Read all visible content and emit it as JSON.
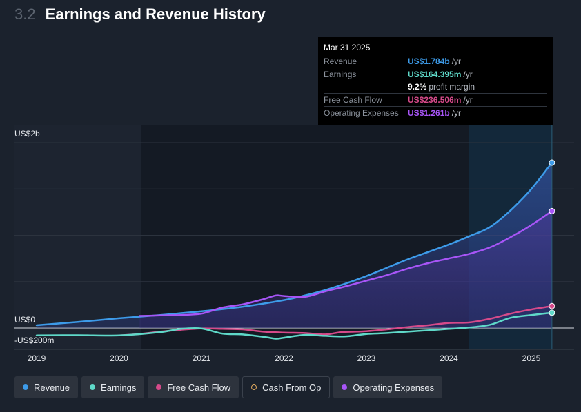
{
  "header": {
    "section_number": "3.2",
    "title": "Earnings and Revenue History"
  },
  "tooltip": {
    "date": "Mar 31 2025",
    "rows": [
      {
        "label": "Revenue",
        "value": "US$1.784b",
        "unit": "/yr"
      },
      {
        "label": "Earnings",
        "value": "US$164.395m",
        "unit": "/yr"
      },
      {
        "label": "",
        "value": "9.2%",
        "unit": "profit margin"
      },
      {
        "label": "Free Cash Flow",
        "value": "US$236.506m",
        "unit": "/yr"
      },
      {
        "label": "Operating Expenses",
        "value": "US$1.261b",
        "unit": "/yr"
      }
    ]
  },
  "legend": [
    {
      "label": "Revenue",
      "color": "#3d9be9",
      "style": "filled"
    },
    {
      "label": "Earnings",
      "color": "#5fd9c9",
      "style": "filled"
    },
    {
      "label": "Free Cash Flow",
      "color": "#d64a8a",
      "style": "filled"
    },
    {
      "label": "Cash From Op",
      "color": "#e0a95e",
      "style": "outlined"
    },
    {
      "label": "Operating Expenses",
      "color": "#a855f7",
      "style": "filled"
    }
  ],
  "chart_data": {
    "type": "line",
    "title": "Earnings and Revenue History",
    "unit": "US$m",
    "x_ticks": [
      "2019",
      "2020",
      "2021",
      "2022",
      "2023",
      "2024",
      "2025"
    ],
    "y_tick_labels": [
      {
        "label": "US$2b",
        "value": 2000
      },
      {
        "label": "US$0",
        "value": 0
      },
      {
        "label": "-US$200m",
        "value": -200
      }
    ],
    "ylim": [
      -200,
      2000
    ],
    "highlight_date": 2025.25,
    "series": [
      {
        "name": "Revenue",
        "color": "#3d9be9",
        "fill": true,
        "points": [
          [
            2019.0,
            30
          ],
          [
            2019.5,
            65
          ],
          [
            2020.0,
            105
          ],
          [
            2020.5,
            140
          ],
          [
            2021.0,
            180
          ],
          [
            2021.5,
            230
          ],
          [
            2022.0,
            300
          ],
          [
            2022.25,
            350
          ],
          [
            2022.5,
            410
          ],
          [
            2022.75,
            480
          ],
          [
            2023.0,
            560
          ],
          [
            2023.25,
            650
          ],
          [
            2023.5,
            740
          ],
          [
            2023.75,
            820
          ],
          [
            2024.0,
            900
          ],
          [
            2024.25,
            990
          ],
          [
            2024.5,
            1090
          ],
          [
            2024.75,
            1270
          ],
          [
            2025.0,
            1500
          ],
          [
            2025.25,
            1784
          ]
        ]
      },
      {
        "name": "Operating Expenses",
        "color": "#a855f7",
        "fill": true,
        "points": [
          [
            2020.25,
            130
          ],
          [
            2020.5,
            135
          ],
          [
            2020.75,
            140
          ],
          [
            2021.0,
            155
          ],
          [
            2021.25,
            220
          ],
          [
            2021.5,
            255
          ],
          [
            2021.75,
            310
          ],
          [
            2021.9,
            350
          ],
          [
            2022.0,
            345
          ],
          [
            2022.25,
            335
          ],
          [
            2022.5,
            395
          ],
          [
            2022.75,
            450
          ],
          [
            2023.0,
            510
          ],
          [
            2023.25,
            570
          ],
          [
            2023.5,
            640
          ],
          [
            2023.75,
            700
          ],
          [
            2024.0,
            750
          ],
          [
            2024.25,
            800
          ],
          [
            2024.5,
            870
          ],
          [
            2024.75,
            980
          ],
          [
            2025.0,
            1110
          ],
          [
            2025.25,
            1261
          ]
        ]
      },
      {
        "name": "Free Cash Flow",
        "color": "#d64a8a",
        "fill": false,
        "points": [
          [
            2020.0,
            -80
          ],
          [
            2020.25,
            -65
          ],
          [
            2020.5,
            -40
          ],
          [
            2020.75,
            -20
          ],
          [
            2021.0,
            -5
          ],
          [
            2021.25,
            -10
          ],
          [
            2021.5,
            -15
          ],
          [
            2021.75,
            -40
          ],
          [
            2022.0,
            -50
          ],
          [
            2022.25,
            -55
          ],
          [
            2022.5,
            -70
          ],
          [
            2022.7,
            -45
          ],
          [
            2023.0,
            -35
          ],
          [
            2023.25,
            -15
          ],
          [
            2023.5,
            10
          ],
          [
            2023.75,
            30
          ],
          [
            2024.0,
            55
          ],
          [
            2024.25,
            60
          ],
          [
            2024.5,
            100
          ],
          [
            2024.75,
            155
          ],
          [
            2025.0,
            200
          ],
          [
            2025.25,
            236.5
          ]
        ]
      },
      {
        "name": "Earnings",
        "color": "#5fd9c9",
        "fill": false,
        "points": [
          [
            2019.0,
            -80
          ],
          [
            2019.5,
            -78
          ],
          [
            2020.0,
            -80
          ],
          [
            2020.5,
            -45
          ],
          [
            2020.75,
            -10
          ],
          [
            2021.0,
            -5
          ],
          [
            2021.25,
            -60
          ],
          [
            2021.5,
            -70
          ],
          [
            2021.75,
            -95
          ],
          [
            2021.9,
            -115
          ],
          [
            2022.0,
            -105
          ],
          [
            2022.25,
            -75
          ],
          [
            2022.5,
            -85
          ],
          [
            2022.75,
            -90
          ],
          [
            2023.0,
            -65
          ],
          [
            2023.25,
            -55
          ],
          [
            2023.5,
            -40
          ],
          [
            2023.75,
            -25
          ],
          [
            2024.0,
            -10
          ],
          [
            2024.25,
            5
          ],
          [
            2024.5,
            35
          ],
          [
            2024.75,
            110
          ],
          [
            2025.0,
            140
          ],
          [
            2025.25,
            164.4
          ]
        ]
      }
    ]
  }
}
